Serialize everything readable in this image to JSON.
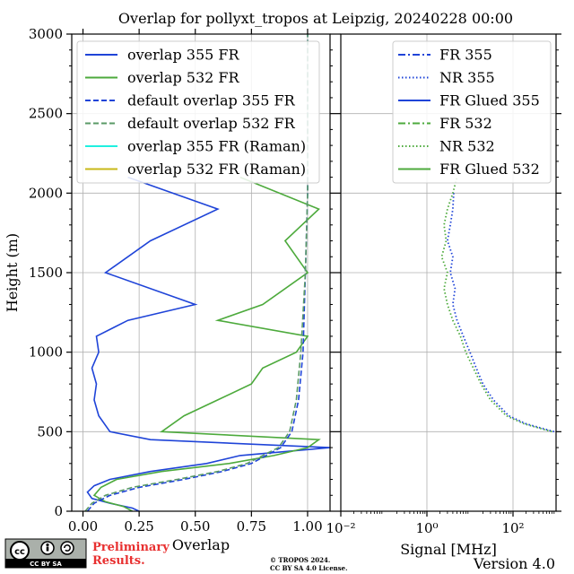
{
  "title": "Overlap for pollyxt_tropos at Leipzig, 20240228 00:00",
  "footer": {
    "license_badge": "CC BY SA",
    "preliminary": "Preliminary Results.",
    "copyright_line1": "© TROPOS 2024.",
    "copyright_line2": "CC BY SA 4.0 License.",
    "version": "Version 4.0"
  },
  "colors": {
    "blue": "#1f44d8",
    "green": "#4daa3c",
    "default_green": "#5a9a66",
    "cyan": "#20f0e0",
    "olive": "#c8b818",
    "red": "#e83030"
  },
  "chart_data": [
    {
      "type": "line",
      "panel": "left",
      "xlabel": "Overlap",
      "ylabel": "Height (m)",
      "xlim": [
        -0.05,
        1.1
      ],
      "ylim": [
        0,
        3000
      ],
      "xticks": [
        0.0,
        0.25,
        0.5,
        0.75,
        1.0
      ],
      "xtick_labels": [
        "0.00",
        "0.25",
        "0.50",
        "0.75",
        "1.00"
      ],
      "yticks": [
        0,
        500,
        1000,
        1500,
        2000,
        2500,
        3000
      ],
      "ytick_labels": [
        "0",
        "500",
        "1000",
        "1500",
        "2000",
        "2500",
        "3000"
      ],
      "grid": true,
      "legend_position": "top-right",
      "series": [
        {
          "name": "overlap 355 FR",
          "style": "solid",
          "color": "#1f44d8",
          "height": [
            0,
            20,
            50,
            80,
            120,
            160,
            200,
            250,
            300,
            350,
            400,
            450,
            500,
            600,
            700,
            800,
            900,
            1000,
            1100,
            1200,
            1300,
            1500,
            1700,
            1900,
            2100
          ],
          "values": [
            0.25,
            0.22,
            0.12,
            0.04,
            0.02,
            0.05,
            0.12,
            0.3,
            0.55,
            0.7,
            1.1,
            0.3,
            0.12,
            0.07,
            0.05,
            0.06,
            0.04,
            0.07,
            0.06,
            0.2,
            0.5,
            0.1,
            0.3,
            0.6,
            0.2
          ]
        },
        {
          "name": "overlap 532 FR",
          "style": "solid",
          "color": "#4daa3c",
          "height": [
            0,
            30,
            60,
            100,
            150,
            200,
            250,
            300,
            350,
            400,
            450,
            500,
            600,
            700,
            800,
            900,
            1000,
            1100,
            1200,
            1300,
            1500,
            1700,
            1900,
            2100
          ],
          "values": [
            0.22,
            0.18,
            0.1,
            0.05,
            0.08,
            0.15,
            0.35,
            0.65,
            0.85,
            1.0,
            1.05,
            0.35,
            0.45,
            0.6,
            0.75,
            0.8,
            0.95,
            1.0,
            0.6,
            0.8,
            1.0,
            0.9,
            1.05,
            0.7
          ]
        },
        {
          "name": "default overlap 355 FR",
          "style": "dashed",
          "color": "#1f44d8",
          "height": [
            0,
            50,
            100,
            150,
            200,
            250,
            300,
            400,
            500,
            700,
            1000,
            1500,
            2000,
            2500,
            3000
          ],
          "values": [
            0.02,
            0.05,
            0.12,
            0.25,
            0.45,
            0.62,
            0.75,
            0.88,
            0.93,
            0.96,
            0.98,
            0.99,
            1.0,
            1.0,
            1.0
          ]
        },
        {
          "name": "default overlap 532 FR",
          "style": "dashed",
          "color": "#5a9a66",
          "height": [
            0,
            50,
            100,
            150,
            200,
            250,
            300,
            400,
            500,
            700,
            1000,
            1500,
            2000,
            2500,
            3000
          ],
          "values": [
            0.01,
            0.04,
            0.1,
            0.22,
            0.42,
            0.6,
            0.73,
            0.87,
            0.92,
            0.95,
            0.97,
            0.99,
            1.0,
            1.0,
            1.0
          ]
        },
        {
          "name": "overlap 355 FR (Raman)",
          "style": "solid",
          "color": "#20f0e0",
          "height": [],
          "values": []
        },
        {
          "name": "overlap 532 FR (Raman)",
          "style": "solid",
          "color": "#c8b818",
          "height": [],
          "values": []
        }
      ]
    },
    {
      "type": "line",
      "panel": "right",
      "xlabel": "Signal [MHz]",
      "xscale": "log",
      "xlim": [
        0.01,
        1000
      ],
      "ylim": [
        0,
        3000
      ],
      "xticks": [
        0.01,
        1,
        100
      ],
      "xtick_labels": [
        "10⁻²",
        "10⁰",
        "10²"
      ],
      "grid": true,
      "legend_position": "top-right",
      "series": [
        {
          "name": "FR 355",
          "style": "dashdot",
          "color": "#1f44d8",
          "height": [],
          "values": []
        },
        {
          "name": "NR 355",
          "style": "dotted",
          "color": "#1f44d8",
          "height": [
            500,
            550,
            600,
            700,
            800,
            900,
            1000,
            1100,
            1200,
            1300,
            1400,
            1500,
            1600,
            1700,
            1800,
            1900,
            2000
          ],
          "values": [
            900,
            200,
            80,
            35,
            20,
            14,
            10,
            7,
            5,
            4,
            4.5,
            3.5,
            4,
            3,
            3.5,
            4,
            4.2
          ]
        },
        {
          "name": "FR Glued 355",
          "style": "solid",
          "color": "#1f44d8",
          "height": [],
          "values": []
        },
        {
          "name": "FR 532",
          "style": "dashdot",
          "color": "#4daa3c",
          "height": [],
          "values": []
        },
        {
          "name": "NR 532",
          "style": "dotted",
          "color": "#4daa3c",
          "height": [
            500,
            550,
            600,
            700,
            800,
            900,
            1000,
            1100,
            1200,
            1300,
            1400,
            1500,
            1600,
            1700,
            1800,
            1900,
            2000,
            2100
          ],
          "values": [
            800,
            180,
            70,
            30,
            18,
            12,
            8,
            6,
            4,
            3,
            2.5,
            3,
            2.2,
            2.8,
            2.5,
            3,
            4,
            5
          ]
        },
        {
          "name": "FR Glued 532",
          "style": "solid",
          "color": "#4daa3c",
          "height": [],
          "values": []
        }
      ]
    }
  ]
}
